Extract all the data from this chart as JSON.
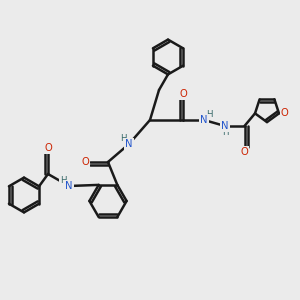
{
  "bg_color": "#ebebeb",
  "bond_color": "#1a1a1a",
  "bond_width": 1.5,
  "atom_colors": {
    "C": "#1a1a1a",
    "N": "#2255cc",
    "O": "#cc2200",
    "H": "#336666"
  },
  "font_size": 7.5,
  "fig_size": [
    3.0,
    3.0
  ],
  "dpi": 100
}
